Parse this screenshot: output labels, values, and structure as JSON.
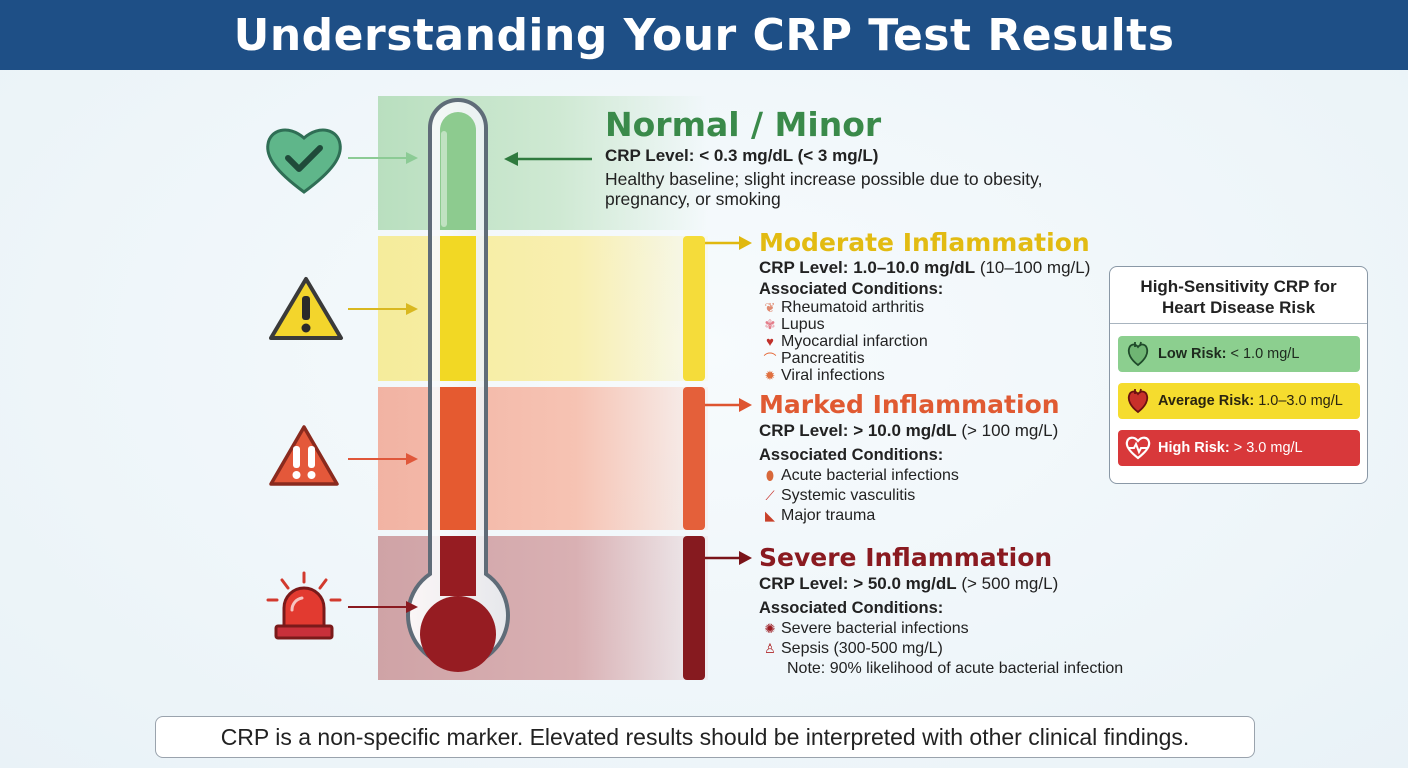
{
  "title": "Understanding Your CRP Test Results",
  "tiers": {
    "normal": {
      "name": "Normal / Minor",
      "level_label": "CRP Level:",
      "level_value": "< 0.3 mg/dL (< 3 mg/L)",
      "description_line1": "Healthy baseline; slight increase possible due to obesity,",
      "description_line2": "pregnancy, or smoking",
      "color": "#3a8a4a",
      "icon": "heart-check-icon"
    },
    "moderate": {
      "name": "Moderate Inflammation",
      "level_label": "CRP Level:",
      "level_value": "1.0–10.0 mg/dL",
      "level_alt": "(10–100 mg/L)",
      "associated_label": "Associated Conditions:",
      "conditions": [
        "Rheumatoid arthritis",
        "Lupus",
        "Myocardial infarction",
        "Pancreatitis",
        "Viral infections"
      ],
      "color": "#e2bb12",
      "icon": "warning-icon"
    },
    "marked": {
      "name": "Marked Inflammation",
      "level_label": "CRP Level:",
      "level_value": "> 10.0 mg/dL",
      "level_alt": "(> 100 mg/L)",
      "associated_label": "Associated Conditions:",
      "conditions": [
        "Acute bacterial infections",
        "Systemic vasculitis",
        "Major trauma"
      ],
      "color": "#e05a32",
      "icon": "double-exclamation-icon"
    },
    "severe": {
      "name": "Severe Inflammation",
      "level_label": "CRP Level:",
      "level_value": "> 50.0 mg/dL",
      "level_alt": "(> 500 mg/L)",
      "associated_label": "Associated Conditions:",
      "conditions": [
        "Severe bacterial infections",
        "Sepsis (300-500 mg/L)"
      ],
      "note": "Note: 90% likelihood of acute bacterial infection",
      "color": "#8a1a20",
      "icon": "siren-icon"
    }
  },
  "hs_crp": {
    "title_line1": "High-Sensitivity CRP for",
    "title_line2": "Heart Disease Risk",
    "risks": [
      {
        "label": "Low Risk:",
        "value": "< 1.0 mg/L",
        "color": "#8ccf8f"
      },
      {
        "label": "Average Risk:",
        "value": "1.0–3.0 mg/L",
        "color": "#f5dc2e"
      },
      {
        "label": "High Risk:",
        "value": "> 3.0 mg/L",
        "color": "#d8383a"
      }
    ]
  },
  "footer": "CRP is a non-specific marker. Elevated results should be interpreted with other clinical findings."
}
